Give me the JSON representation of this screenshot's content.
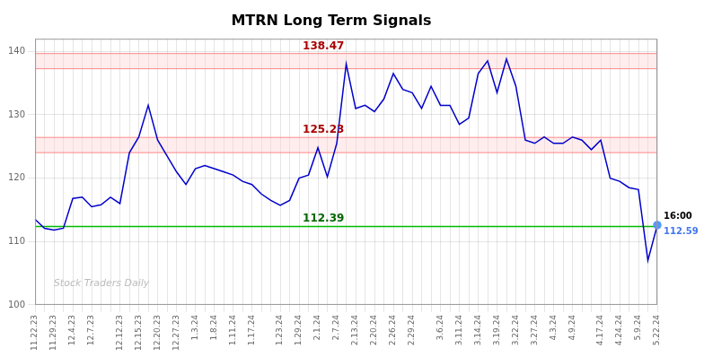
{
  "chart_data": {
    "type": "line",
    "title": "MTRN Long Term Signals",
    "categories": [
      "11.22.23",
      null,
      "11.29.23",
      null,
      "12.4.23",
      null,
      "12.7.23",
      null,
      null,
      "12.12.23",
      null,
      "12.15.23",
      null,
      "12.20.23",
      null,
      "12.27.23",
      null,
      "1.3.24",
      null,
      "1.8.24",
      null,
      "1.11.24",
      null,
      "1.17.24",
      null,
      null,
      "1.23.24",
      null,
      "1.29.24",
      null,
      "2.1.24",
      null,
      "2.7.24",
      null,
      "2.13.24",
      null,
      "2.20.24",
      null,
      "2.26.24",
      null,
      "2.29.24",
      null,
      null,
      "3.6.24",
      null,
      "3.11.24",
      null,
      "3.14.24",
      null,
      "3.19.24",
      null,
      "3.22.24",
      null,
      "3.27.24",
      null,
      "4.3.24",
      null,
      "4.9.24",
      null,
      null,
      "4.17.24",
      null,
      "4.24.24",
      null,
      "5.9.24",
      null,
      "5.22.24"
    ],
    "values": [
      113.5,
      112.1,
      111.8,
      112.1,
      116.8,
      117.0,
      115.5,
      115.8,
      117.0,
      116.0,
      124.0,
      126.5,
      131.5,
      126.0,
      123.5,
      121.0,
      119.0,
      121.5,
      122.0,
      121.5,
      121.0,
      120.5,
      119.5,
      119.0,
      117.5,
      116.5,
      115.7,
      116.5,
      120.0,
      120.5,
      124.8,
      120.2,
      125.5,
      138.0,
      131.0,
      131.5,
      130.5,
      132.5,
      136.5,
      134.0,
      133.5,
      131.0,
      134.5,
      131.5,
      131.5,
      128.5,
      129.5,
      136.5,
      138.5,
      133.5,
      138.8,
      134.5,
      126.0,
      125.5,
      126.5,
      125.5,
      125.5,
      126.5,
      126.0,
      124.5,
      126.0,
      120.0,
      119.5,
      118.5,
      118.2,
      107.0,
      112.59
    ],
    "color": "#0000cc",
    "ylim": [
      100,
      142
    ],
    "yticks": [
      100,
      110,
      120,
      130,
      140
    ],
    "grid": true,
    "annotations": [
      {
        "type": "band",
        "value": 138.47,
        "from": 137.27,
        "to": 139.67,
        "color": "#ffcccc",
        "line_color": "#ff8888",
        "label_color": "#aa0000"
      },
      {
        "type": "band",
        "value": 125.23,
        "from": 124.03,
        "to": 126.43,
        "color": "#ffcccc",
        "line_color": "#ff8888",
        "label_color": "#aa0000"
      },
      {
        "type": "line",
        "value": 112.39,
        "color": "#00bb00",
        "label_color": "#006600"
      },
      {
        "type": "last_point",
        "value": 112.59,
        "text": "16:00",
        "color": "#5599ff",
        "label_color": "#4477ee"
      },
      {
        "type": "watermark",
        "text": "Stock Traders Daily"
      }
    ]
  }
}
